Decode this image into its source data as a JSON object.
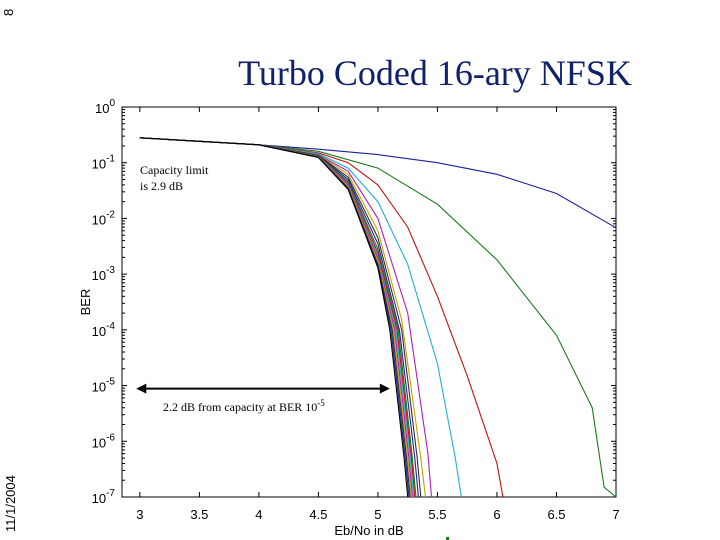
{
  "slide": {
    "number": "8",
    "date": "11/1/2004"
  },
  "chart_data": {
    "type": "line",
    "title": "Turbo Coded 16-ary NFSK",
    "xlabel": "Eb/No in dB",
    "ylabel": "BER",
    "xlim": [
      2.85,
      7.0
    ],
    "ylim_log10": [
      -7,
      0
    ],
    "yscale": "log",
    "xticks": [
      "3",
      "3.5",
      "4",
      "4.5",
      "5",
      "5.5",
      "6",
      "6.5",
      "7"
    ],
    "xtick_values": [
      3,
      3.5,
      4,
      4.5,
      5,
      5.5,
      6,
      6.5,
      7
    ],
    "yticks": [
      {
        "base": "10",
        "exp": "0"
      },
      {
        "base": "10",
        "exp": "-1"
      },
      {
        "base": "10",
        "exp": "-2"
      },
      {
        "base": "10",
        "exp": "-3"
      },
      {
        "base": "10",
        "exp": "-4"
      },
      {
        "base": "10",
        "exp": "-5"
      },
      {
        "base": "10",
        "exp": "-6"
      },
      {
        "base": "10",
        "exp": "-7"
      }
    ],
    "ytick_exponents": [
      0,
      -1,
      -2,
      -3,
      -4,
      -5,
      -6,
      -7
    ],
    "grid": false,
    "annotations": {
      "capacity_line1": "Capacity limit",
      "capacity_line2": "is 2.9 dB",
      "gap_text": "2.2 dB from capacity at BER 10",
      "gap_sup": "-5",
      "gap_arrow_x": [
        2.97,
        5.1
      ],
      "gap_arrow_y_log10": -5
    },
    "series": [
      {
        "color": "#1f1fa0",
        "x": [
          3.0,
          3.5,
          4.0,
          4.5,
          5.0,
          5.5,
          6.0,
          6.5,
          7.0
        ],
        "y": [
          0.28,
          0.24,
          0.21,
          0.175,
          0.14,
          0.1,
          0.062,
          0.028,
          0.0068
        ]
      },
      {
        "color": "#1a7a1a",
        "x": [
          3.0,
          4.0,
          4.5,
          5.0,
          5.5,
          6.0,
          6.5,
          6.8,
          6.9,
          7.0
        ],
        "y": [
          0.28,
          0.21,
          0.16,
          0.08,
          0.018,
          0.0018,
          8e-05,
          4e-06,
          1.5e-07,
          1e-07
        ]
      },
      {
        "color": "#c01010",
        "x": [
          3.0,
          4.0,
          4.5,
          4.75,
          5.0,
          5.25,
          5.5,
          5.75,
          6.0,
          6.05
        ],
        "y": [
          0.28,
          0.21,
          0.15,
          0.1,
          0.04,
          0.007,
          0.0004,
          1.5e-05,
          4e-07,
          1e-07
        ]
      },
      {
        "color": "#20b0d0",
        "x": [
          3.0,
          4.0,
          4.5,
          4.75,
          5.0,
          5.25,
          5.5,
          5.65,
          5.7
        ],
        "y": [
          0.28,
          0.21,
          0.145,
          0.08,
          0.02,
          0.0015,
          2.5e-05,
          5e-07,
          1e-07
        ]
      },
      {
        "color": "#b020b0",
        "x": [
          3.0,
          4.0,
          4.5,
          4.75,
          5.0,
          5.25,
          5.42,
          5.45
        ],
        "y": [
          0.28,
          0.21,
          0.14,
          0.07,
          0.01,
          0.0002,
          6e-07,
          1e-07
        ]
      },
      {
        "color": "#c8a000",
        "x": [
          3.0,
          4.0,
          4.5,
          4.75,
          5.0,
          5.2,
          5.36,
          5.4
        ],
        "y": [
          0.28,
          0.21,
          0.138,
          0.062,
          0.006,
          0.00015,
          5e-07,
          1e-07
        ]
      },
      {
        "color": "#303030",
        "x": [
          3.0,
          4.0,
          4.5,
          4.75,
          5.0,
          5.2,
          5.33,
          5.36
        ],
        "y": [
          0.28,
          0.21,
          0.136,
          0.055,
          0.0045,
          0.0001,
          5e-07,
          1e-07
        ]
      },
      {
        "color": "#1f1fa0",
        "x": [
          3.0,
          4.0,
          4.5,
          4.75,
          5.0,
          5.18,
          5.31,
          5.34
        ],
        "y": [
          0.28,
          0.21,
          0.134,
          0.05,
          0.0035,
          0.0001,
          5e-07,
          1e-07
        ]
      },
      {
        "color": "#1a7a1a",
        "x": [
          3.0,
          4.0,
          4.5,
          4.75,
          5.0,
          5.17,
          5.29,
          5.32
        ],
        "y": [
          0.28,
          0.21,
          0.132,
          0.046,
          0.0028,
          0.0001,
          5e-07,
          1e-07
        ]
      },
      {
        "color": "#c01010",
        "x": [
          3.0,
          4.0,
          4.5,
          4.75,
          5.0,
          5.16,
          5.28,
          5.31
        ],
        "y": [
          0.28,
          0.21,
          0.13,
          0.043,
          0.0024,
          0.0001,
          5e-07,
          1e-07
        ]
      },
      {
        "color": "#20b0d0",
        "x": [
          3.0,
          4.0,
          4.5,
          4.75,
          5.0,
          5.15,
          5.27,
          5.3
        ],
        "y": [
          0.28,
          0.21,
          0.129,
          0.041,
          0.0021,
          0.0001,
          5e-07,
          1e-07
        ]
      },
      {
        "color": "#b020b0",
        "x": [
          3.0,
          4.0,
          4.5,
          4.75,
          5.0,
          5.14,
          5.26,
          5.29
        ],
        "y": [
          0.28,
          0.21,
          0.128,
          0.039,
          0.0019,
          0.0001,
          5e-07,
          1e-07
        ]
      },
      {
        "color": "#c8a000",
        "x": [
          3.0,
          4.0,
          4.5,
          4.75,
          5.0,
          5.13,
          5.25,
          5.28
        ],
        "y": [
          0.28,
          0.21,
          0.127,
          0.037,
          0.0017,
          0.0001,
          5e-07,
          1e-07
        ]
      },
      {
        "color": "#303030",
        "x": [
          3.0,
          4.0,
          4.5,
          4.75,
          5.0,
          5.12,
          5.24,
          5.27
        ],
        "y": [
          0.28,
          0.21,
          0.126,
          0.035,
          0.0015,
          0.0001,
          5e-07,
          1e-07
        ]
      },
      {
        "color": "#1f1fa0",
        "x": [
          3.0,
          4.0,
          4.5,
          4.75,
          5.0,
          5.11,
          5.23,
          5.26
        ],
        "y": [
          0.28,
          0.21,
          0.125,
          0.034,
          0.0014,
          0.0001,
          5e-07,
          1e-07
        ]
      },
      {
        "color": "#000000",
        "x": [
          3.0,
          4.0,
          4.5,
          4.75,
          5.0,
          5.1,
          5.22,
          5.25
        ],
        "y": [
          0.28,
          0.21,
          0.124,
          0.033,
          0.0013,
          0.0001,
          5e-07,
          1e-07
        ]
      }
    ]
  }
}
